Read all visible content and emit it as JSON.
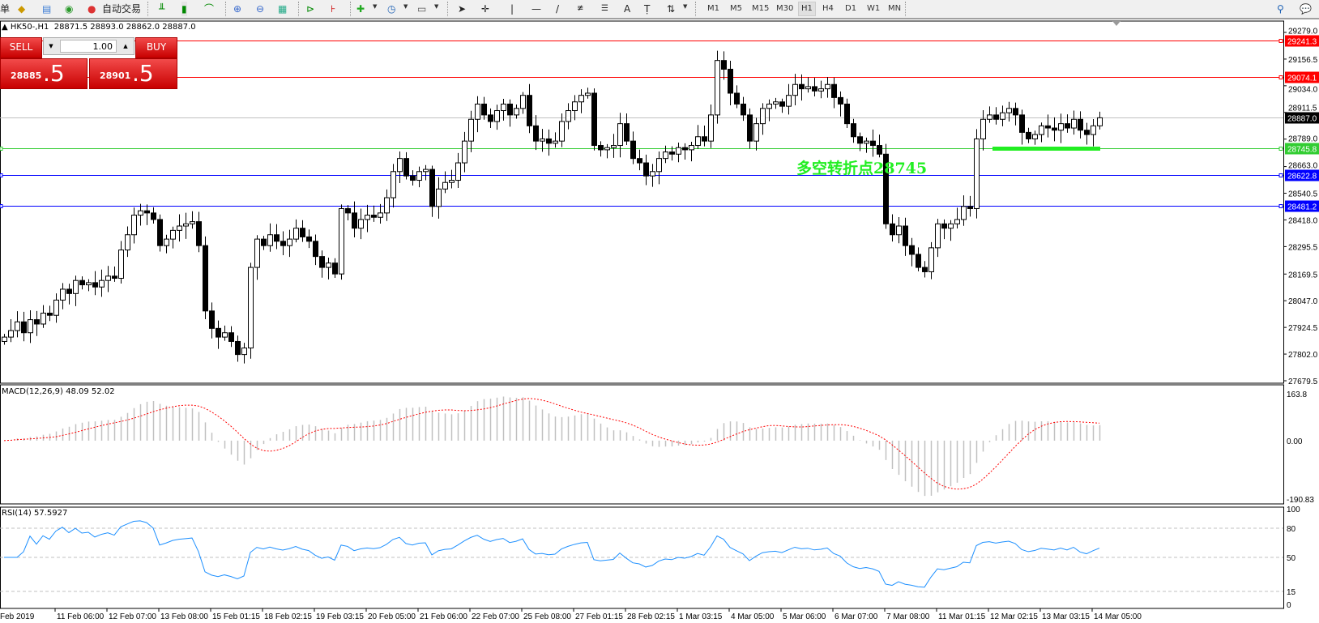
{
  "toolbar": {
    "cut_label": "单",
    "autotrade_label": "自动交易",
    "icons": [
      "market-watch-icon",
      "terminal-icon",
      "signals-icon",
      "autotrade-icon",
      "bar-chart-icon",
      "candlestick-icon",
      "line-chart-icon",
      "zoom-in-icon",
      "zoom-out-icon",
      "tile-windows-icon",
      "auto-scroll-icon",
      "chart-shift-icon",
      "indicators-icon",
      "periods-icon",
      "templates-icon",
      "cursor-icon",
      "crosshair-icon",
      "vertical-line-icon",
      "horizontal-line-icon",
      "trendline-icon",
      "fibonacci-expansion-icon",
      "fibonacci-fan-icon",
      "text-icon",
      "text-label-icon",
      "arrows-icon",
      "search-icon",
      "chat-icon"
    ],
    "timeframes": [
      "M1",
      "M5",
      "M15",
      "M30",
      "H1",
      "H4",
      "D1",
      "W1",
      "MN"
    ],
    "active_timeframe": "H1"
  },
  "chart": {
    "symbol_info": "HK50-,H1  28871.5 28893.0 28862.0 28887.0",
    "trade_panel": {
      "sell_label": "SELL",
      "buy_label": "BUY",
      "lot": "1.00",
      "sell_price_main": "28885",
      "sell_price_big": ".5",
      "buy_price_main": "28901",
      "buy_price_big": ".5"
    },
    "annotation": "多空转折点28745",
    "annotation_level": 28745,
    "annotation_color": "#22ee22",
    "price_axis": [
      "29279.0",
      "29156.5",
      "29034.0",
      "28911.5",
      "28789.0",
      "28663.0",
      "28540.5",
      "28418.0",
      "28295.5",
      "28169.5",
      "28047.0",
      "27924.5",
      "27802.0",
      "27679.5"
    ],
    "price_range": [
      27679.5,
      29279.0
    ],
    "hlines": [
      {
        "price": "29241.3",
        "color": "#ff0000"
      },
      {
        "price": "29074.1",
        "color": "#ff0000"
      },
      {
        "price": "28887.0",
        "color": "#000000",
        "line": "#c0c0c0"
      },
      {
        "price": "28745.8",
        "color": "#32cd32"
      },
      {
        "price": "28622.8",
        "color": "#0000ff"
      },
      {
        "price": "28481.2",
        "color": "#0000ff"
      }
    ],
    "time_axis": [
      "Feb 2019",
      "11 Feb 06:00",
      "12 Feb 07:00",
      "13 Feb 08:00",
      "15 Feb 01:15",
      "18 Feb 02:15",
      "19 Feb 03:15",
      "20 Feb 05:00",
      "21 Feb 06:00",
      "22 Feb 07:00",
      "25 Feb 08:00",
      "27 Feb 01:15",
      "28 Feb 02:15",
      "1 Mar 03:15",
      "4 Mar 05:00",
      "5 Mar 06:00",
      "6 Mar 07:00",
      "7 Mar 08:00",
      "11 Mar 01:15",
      "12 Mar 02:15",
      "13 Mar 03:15",
      "14 Mar 05:00"
    ],
    "closes": [
      27880,
      27910,
      27950,
      27900,
      27960,
      27940,
      27990,
      27980,
      28050,
      28100,
      28080,
      28140,
      28120,
      28130,
      28110,
      28140,
      28160,
      28150,
      28280,
      28350,
      28440,
      28460,
      28450,
      28420,
      28300,
      28330,
      28370,
      28390,
      28400,
      28410,
      28300,
      28000,
      27920,
      27880,
      27900,
      27860,
      27800,
      27830,
      28200,
      28330,
      28300,
      28350,
      28320,
      28300,
      28330,
      28380,
      28340,
      28320,
      28250,
      28200,
      28220,
      28170,
      28470,
      28450,
      28380,
      28420,
      28440,
      28430,
      28450,
      28520,
      28640,
      28700,
      28620,
      28600,
      28640,
      28650,
      28480,
      28560,
      28590,
      28600,
      28680,
      28780,
      28880,
      28950,
      28900,
      28870,
      28920,
      28950,
      28900,
      28930,
      28990,
      28850,
      28780,
      28790,
      28770,
      28780,
      28870,
      28920,
      28960,
      28990,
      29000,
      28760,
      28740,
      28750,
      28760,
      28860,
      28780,
      28700,
      28680,
      28620,
      28640,
      28700,
      28730,
      28720,
      28750,
      28740,
      28760,
      28800,
      28780,
      28900,
      29150,
      29110,
      29000,
      28950,
      28900,
      28780,
      28860,
      28930,
      28950,
      28960,
      28940,
      28990,
      29040,
      29020,
      29030,
      29010,
      29020,
      29040,
      28980,
      28950,
      28860,
      28800,
      28770,
      28780,
      28760,
      28720,
      28400,
      28350,
      28390,
      28300,
      28260,
      28200,
      28180,
      28290,
      28400,
      28380,
      28400,
      28420,
      28480,
      28470,
      28790,
      28880,
      28900,
      28880,
      28910,
      28930,
      28900,
      28820,
      28790,
      28810,
      28850,
      28840,
      28830,
      28860,
      28840,
      28880,
      28830,
      28810,
      28850,
      28887
    ]
  },
  "macd": {
    "label": "MACD(12,26,9) 48.09 52.02",
    "axis": [
      "163.8",
      "0.00",
      "-190.83"
    ],
    "histogram_color": "#c0c0c0",
    "signal_color": "#ff0000"
  },
  "rsi": {
    "label": "RSI(14) 57.5927",
    "axis": [
      "100",
      "80",
      "50",
      "15",
      "0"
    ],
    "line_color": "#1e90ff"
  }
}
